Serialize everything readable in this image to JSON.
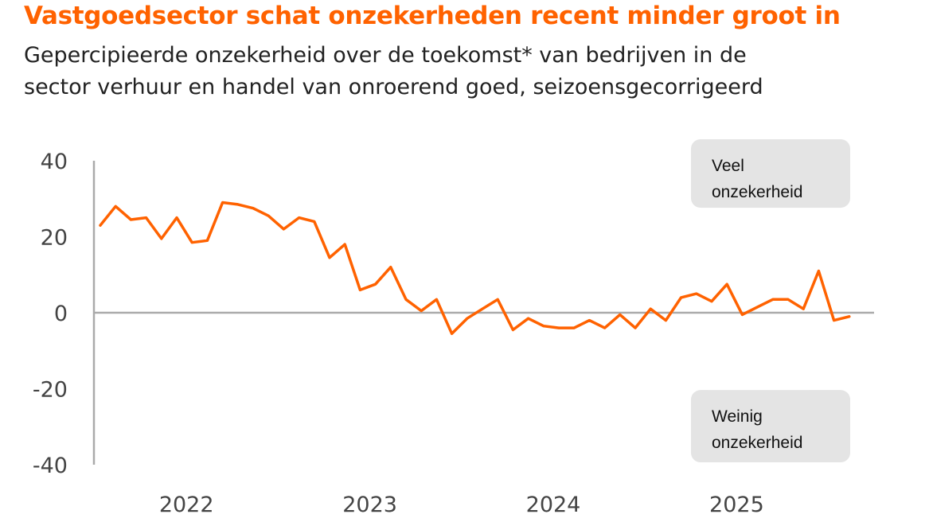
{
  "header": {
    "title": "Vastgoedsector schat onzekerheden recent minder groot in",
    "subtitle_line1": "Gepercipieerde onzekerheid over de toekomst* van bedrijven in de",
    "subtitle_line2": "sector verhuur en handel van onroerend goed, seizoensgecorrigeerd"
  },
  "chart_data": {
    "type": "line",
    "title": "Vastgoedsector schat onzekerheden recent minder groot in",
    "subtitle": "Gepercipieerde onzekerheid over de toekomst* van bedrijven in de sector verhuur en handel van onroerend goed, seizoensgecorrigeerd",
    "xlabel": "",
    "ylabel": "",
    "ylim": [
      -40,
      40
    ],
    "yticks": [
      40,
      20,
      0,
      -20,
      -40
    ],
    "yticklabels": [
      "40",
      "20",
      "0",
      "-20",
      "-40"
    ],
    "xticks": [
      2022,
      2023,
      2024,
      2025
    ],
    "xticklabels": [
      "2022",
      "2023",
      "2024",
      "2025"
    ],
    "x_start": 2021.5,
    "x_step_months": 1,
    "grid": false,
    "zero_line": true,
    "series": [
      {
        "color": "#ff6200",
        "values": [
          23,
          28,
          24.5,
          25,
          19.5,
          25,
          18.5,
          19,
          29,
          28.5,
          27.5,
          25.5,
          22,
          25,
          24,
          14.5,
          18,
          6,
          7.5,
          12,
          3.5,
          0.5,
          3.5,
          -5.5,
          -1.5,
          1,
          3.5,
          -4.5,
          -1.5,
          -3.5,
          -4,
          -4,
          -2,
          -4,
          -0.5,
          -4,
          1,
          -2,
          4,
          5,
          3,
          7.5,
          -0.5,
          1.5,
          3.5,
          3.5,
          1,
          11,
          -2,
          -1
        ]
      }
    ],
    "annotations": [
      {
        "id": "high",
        "line1": "Veel",
        "line2": "onzekerheid",
        "y_range": [
          27,
          40
        ]
      },
      {
        "id": "low",
        "line1": "Weinig",
        "line2": "onzekerheid",
        "y_range": [
          -40,
          -26
        ]
      }
    ],
    "colors": {
      "line": "#ff6200",
      "axis": "#aaaaaa",
      "annotation_bg": "#e4e4e4"
    }
  }
}
